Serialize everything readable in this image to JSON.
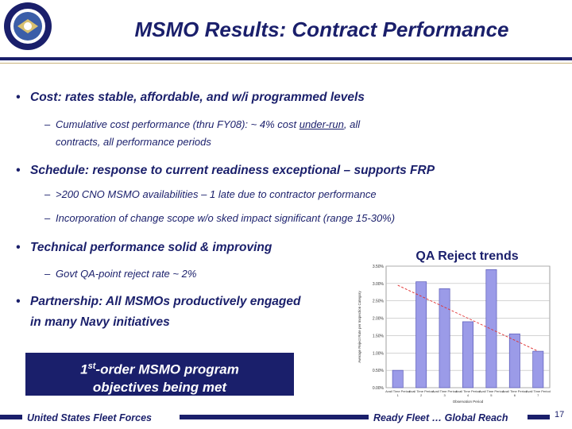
{
  "header": {
    "title": "MSMO Results: Contract Performance",
    "seal_icon": "navy-seal-icon"
  },
  "bullets": [
    {
      "text": "Cost: rates stable, affordable, and w/i programmed levels",
      "subs": [
        {
          "pre": "Cumulative cost performance (thru FY08): ~ 4% cost ",
          "underlined": "under-run",
          "post": ", all",
          "line2": "contracts, all performance periods"
        }
      ]
    },
    {
      "text": "Schedule: response to current readiness exceptional – supports FRP",
      "subs": [
        {
          "text": ">200 CNO MSMO availabilities – 1 late due to contractor performance"
        },
        {
          "text": "Incorporation of change scope w/o sked impact significant (range 15-30%)"
        }
      ]
    },
    {
      "text": "Technical performance solid & improving",
      "subs": [
        {
          "text": "Govt QA-point reject rate ~ 2%"
        }
      ]
    },
    {
      "text": "Partnership: All MSMOs productively engaged",
      "line2": "in many Navy initiatives"
    }
  ],
  "callout": {
    "line1_pre": "1",
    "line1_sup": "st",
    "line1_post": "-order MSMO program",
    "line2": "objectives being met"
  },
  "footer": {
    "left": "United States Fleet Forces",
    "right": "Ready Fleet … Global Reach",
    "page": "17"
  },
  "chart_data": {
    "type": "bar",
    "title": "QA Reject trends",
    "categories": [
      "Avail Time Period 1",
      "Avail Time Period 2",
      "Avail Time Period 3",
      "Avail Time Period 4",
      "Avail Time Period 5",
      "Avail Time Period 6",
      "Avail Time Period 7"
    ],
    "values": [
      0.5,
      3.05,
      2.85,
      1.9,
      3.4,
      1.55,
      1.05
    ],
    "ylim": [
      0,
      3.5
    ],
    "yticks": [
      "0.00%",
      "0.50%",
      "1.00%",
      "1.50%",
      "2.00%",
      "2.50%",
      "3.00%",
      "3.50%"
    ],
    "ylabel": "Average Reject Rate per Inspection Category",
    "xlabel": "Observation Period",
    "trendline": [
      2.95,
      1.05
    ],
    "bar_color": "#9b9be8",
    "trend_color": "#e03030",
    "grid": true
  }
}
